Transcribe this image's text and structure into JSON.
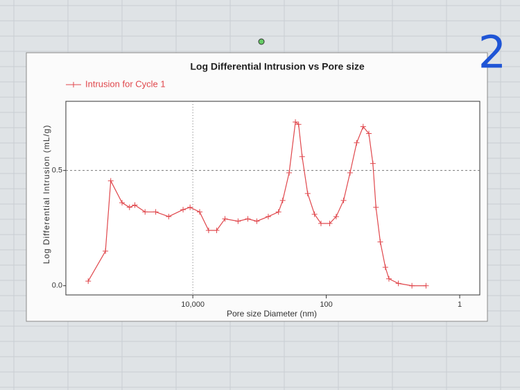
{
  "chart_data": {
    "type": "line",
    "title": "Log Differential Intrusion vs Pore size",
    "x_label": "Pore size Diameter (nm)",
    "y_label": "Log Differential Intrusion (mL/g)",
    "annotation": "2",
    "xscale": "log",
    "xlim": [
      800000,
      0.5
    ],
    "xticks": [
      {
        "value": 10000,
        "label": "10,000"
      },
      100,
      1
    ],
    "ylim": [
      -0.04,
      0.8
    ],
    "yticks": [
      {
        "value": 0,
        "label": "0.0"
      },
      0.5
    ],
    "grid": true,
    "legend": "top-left",
    "x": [
      370000,
      204000,
      170000,
      115000,
      89000,
      74000,
      52000,
      36000,
      23000,
      14000,
      11000,
      7900,
      5800,
      4400,
      3300,
      2100,
      1500,
      1100,
      740,
      520,
      450,
      360,
      290,
      260,
      230,
      190,
      150,
      120,
      89,
      71,
      55,
      44,
      35,
      28,
      23,
      20,
      18,
      15.5,
      13,
      11.5,
      8.3,
      5.2,
      3.2
    ],
    "series": [
      {
        "name": "Intrusion for Cycle 1",
        "color": "#e0474c",
        "values": [
          0.02,
          0.15,
          0.455,
          0.36,
          0.34,
          0.35,
          0.32,
          0.32,
          0.3,
          0.33,
          0.34,
          0.32,
          0.24,
          0.24,
          0.29,
          0.28,
          0.29,
          0.28,
          0.3,
          0.32,
          0.37,
          0.49,
          0.71,
          0.7,
          0.56,
          0.4,
          0.31,
          0.27,
          0.27,
          0.3,
          0.37,
          0.49,
          0.62,
          0.69,
          0.66,
          0.53,
          0.34,
          0.19,
          0.08,
          0.03,
          0.01,
          0.0,
          0.0
        ]
      }
    ]
  }
}
